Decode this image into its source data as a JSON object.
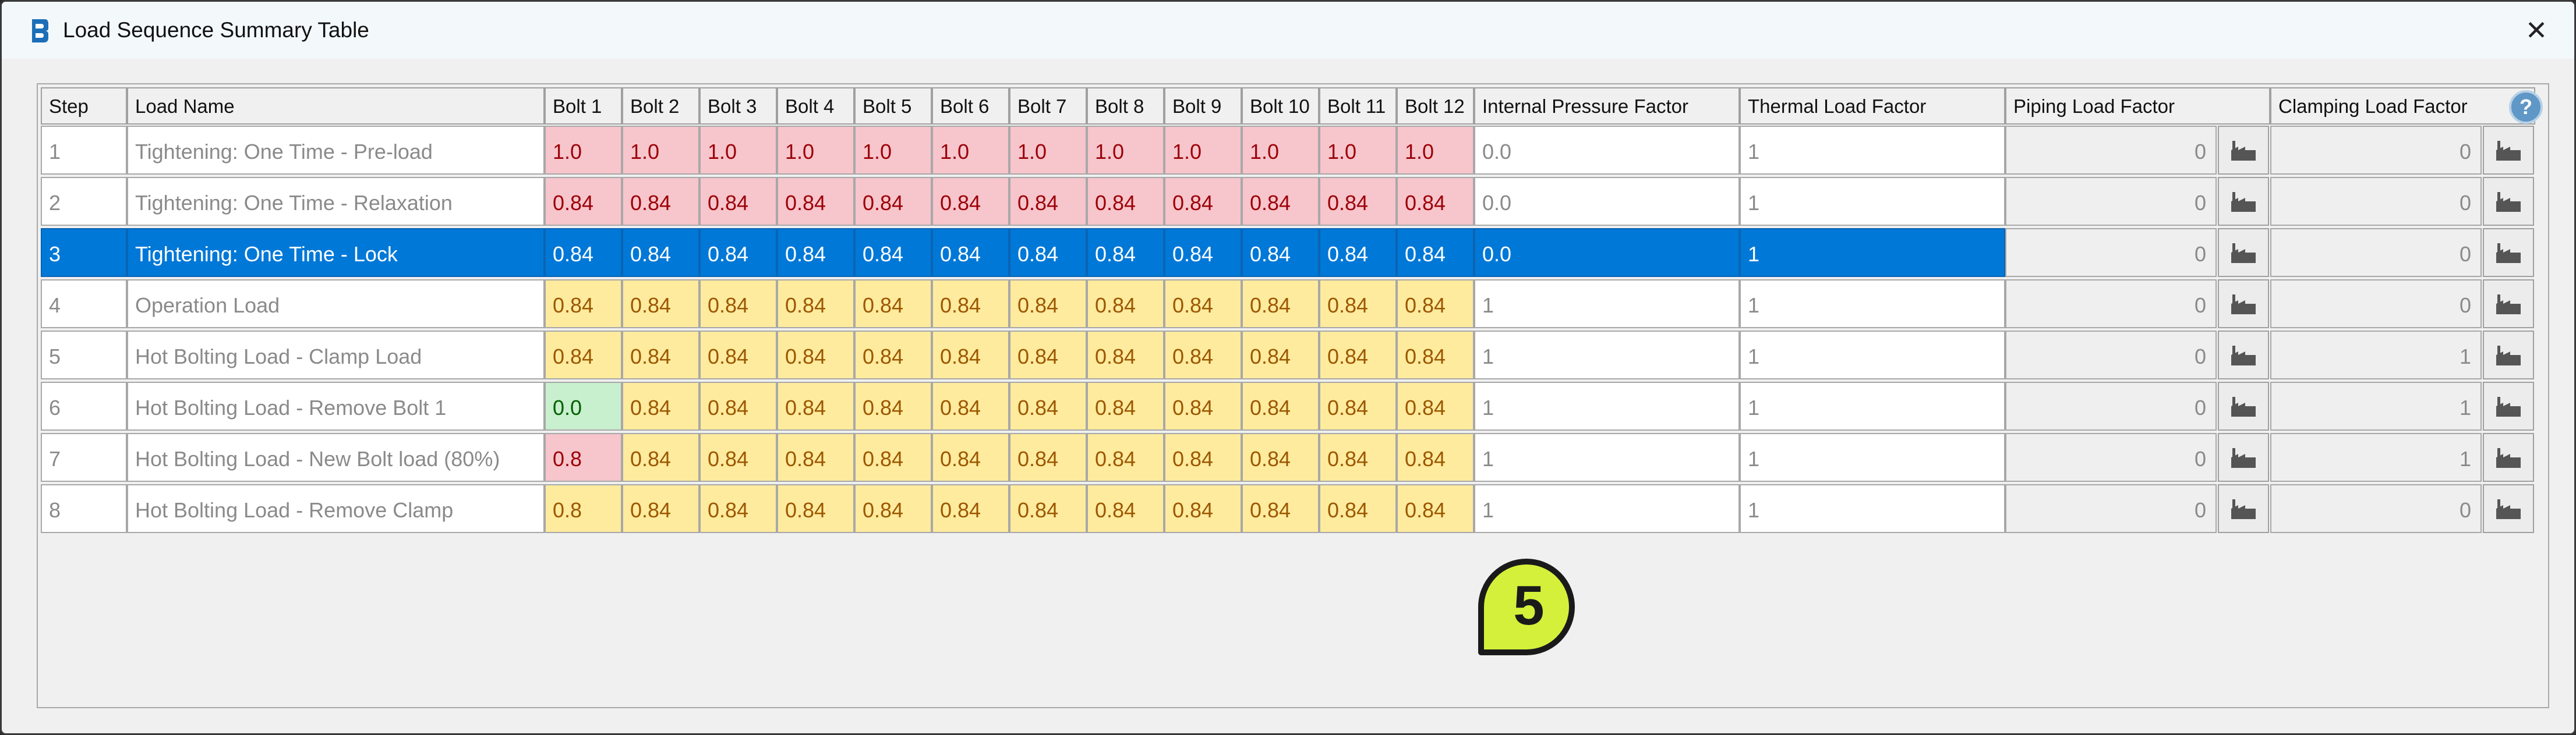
{
  "window": {
    "title": "Load Sequence Summary Table",
    "close_glyph": "✕"
  },
  "table": {
    "headers": [
      "Step",
      "Load Name",
      "Bolt 1",
      "Bolt 2",
      "Bolt 3",
      "Bolt 4",
      "Bolt 5",
      "Bolt 6",
      "Bolt 7",
      "Bolt 8",
      "Bolt 9",
      "Bolt 10",
      "Bolt 11",
      "Bolt 12",
      "Internal Pressure Factor",
      "Thermal Load Factor",
      "Piping Load Factor",
      "Clamping Load Factor"
    ],
    "rows": [
      {
        "step": "1",
        "name": "Tightening: One Time - Pre-load",
        "bolts": [
          "1.0",
          "1.0",
          "1.0",
          "1.0",
          "1.0",
          "1.0",
          "1.0",
          "1.0",
          "1.0",
          "1.0",
          "1.0",
          "1.0"
        ],
        "bolt_colors": [
          "pink",
          "pink",
          "pink",
          "pink",
          "pink",
          "pink",
          "pink",
          "pink",
          "pink",
          "pink",
          "pink",
          "pink"
        ],
        "internal_pressure": "0.0",
        "thermal": "1",
        "piping": "0",
        "clamping": "0",
        "selected": false
      },
      {
        "step": "2",
        "name": "Tightening: One Time - Relaxation",
        "bolts": [
          "0.84",
          "0.84",
          "0.84",
          "0.84",
          "0.84",
          "0.84",
          "0.84",
          "0.84",
          "0.84",
          "0.84",
          "0.84",
          "0.84"
        ],
        "bolt_colors": [
          "pink",
          "pink",
          "pink",
          "pink",
          "pink",
          "pink",
          "pink",
          "pink",
          "pink",
          "pink",
          "pink",
          "pink"
        ],
        "internal_pressure": "0.0",
        "thermal": "1",
        "piping": "0",
        "clamping": "0",
        "selected": false
      },
      {
        "step": "3",
        "name": "Tightening: One Time - Lock",
        "bolts": [
          "0.84",
          "0.84",
          "0.84",
          "0.84",
          "0.84",
          "0.84",
          "0.84",
          "0.84",
          "0.84",
          "0.84",
          "0.84",
          "0.84"
        ],
        "bolt_colors": [
          "sel",
          "sel",
          "sel",
          "sel",
          "sel",
          "sel",
          "sel",
          "sel",
          "sel",
          "sel",
          "sel",
          "sel"
        ],
        "internal_pressure": "0.0",
        "thermal": "1",
        "piping": "0",
        "clamping": "0",
        "selected": true
      },
      {
        "step": "4",
        "name": "Operation Load",
        "bolts": [
          "0.84",
          "0.84",
          "0.84",
          "0.84",
          "0.84",
          "0.84",
          "0.84",
          "0.84",
          "0.84",
          "0.84",
          "0.84",
          "0.84"
        ],
        "bolt_colors": [
          "yellow",
          "yellow",
          "yellow",
          "yellow",
          "yellow",
          "yellow",
          "yellow",
          "yellow",
          "yellow",
          "yellow",
          "yellow",
          "yellow"
        ],
        "internal_pressure": "1",
        "thermal": "1",
        "piping": "0",
        "clamping": "0",
        "selected": false
      },
      {
        "step": "5",
        "name": "Hot Bolting Load - Clamp Load",
        "bolts": [
          "0.84",
          "0.84",
          "0.84",
          "0.84",
          "0.84",
          "0.84",
          "0.84",
          "0.84",
          "0.84",
          "0.84",
          "0.84",
          "0.84"
        ],
        "bolt_colors": [
          "yellow",
          "yellow",
          "yellow",
          "yellow",
          "yellow",
          "yellow",
          "yellow",
          "yellow",
          "yellow",
          "yellow",
          "yellow",
          "yellow"
        ],
        "internal_pressure": "1",
        "thermal": "1",
        "piping": "0",
        "clamping": "1",
        "selected": false
      },
      {
        "step": "6",
        "name": "Hot Bolting Load - Remove Bolt 1",
        "bolts": [
          "0.0",
          "0.84",
          "0.84",
          "0.84",
          "0.84",
          "0.84",
          "0.84",
          "0.84",
          "0.84",
          "0.84",
          "0.84",
          "0.84"
        ],
        "bolt_colors": [
          "green",
          "yellow",
          "yellow",
          "yellow",
          "yellow",
          "yellow",
          "yellow",
          "yellow",
          "yellow",
          "yellow",
          "yellow",
          "yellow"
        ],
        "internal_pressure": "1",
        "thermal": "1",
        "piping": "0",
        "clamping": "1",
        "selected": false
      },
      {
        "step": "7",
        "name": "Hot Bolting Load - New Bolt load (80%)",
        "bolts": [
          "0.8",
          "0.84",
          "0.84",
          "0.84",
          "0.84",
          "0.84",
          "0.84",
          "0.84",
          "0.84",
          "0.84",
          "0.84",
          "0.84"
        ],
        "bolt_colors": [
          "pink",
          "yellow",
          "yellow",
          "yellow",
          "yellow",
          "yellow",
          "yellow",
          "yellow",
          "yellow",
          "yellow",
          "yellow",
          "yellow"
        ],
        "internal_pressure": "1",
        "thermal": "1",
        "piping": "0",
        "clamping": "1",
        "selected": false
      },
      {
        "step": "8",
        "name": "Hot Bolting Load - Remove Clamp",
        "bolts": [
          "0.8",
          "0.84",
          "0.84",
          "0.84",
          "0.84",
          "0.84",
          "0.84",
          "0.84",
          "0.84",
          "0.84",
          "0.84",
          "0.84"
        ],
        "bolt_colors": [
          "yellow",
          "yellow",
          "yellow",
          "yellow",
          "yellow",
          "yellow",
          "yellow",
          "yellow",
          "yellow",
          "yellow",
          "yellow",
          "yellow"
        ],
        "internal_pressure": "1",
        "thermal": "1",
        "piping": "0",
        "clamping": "0",
        "selected": false
      }
    ]
  },
  "help": {
    "glyph": "?"
  },
  "badge": {
    "text": "5",
    "color": "#d4f03a"
  },
  "icons": {
    "app": "app-logo-icon",
    "picker": "factory-picker-icon"
  }
}
